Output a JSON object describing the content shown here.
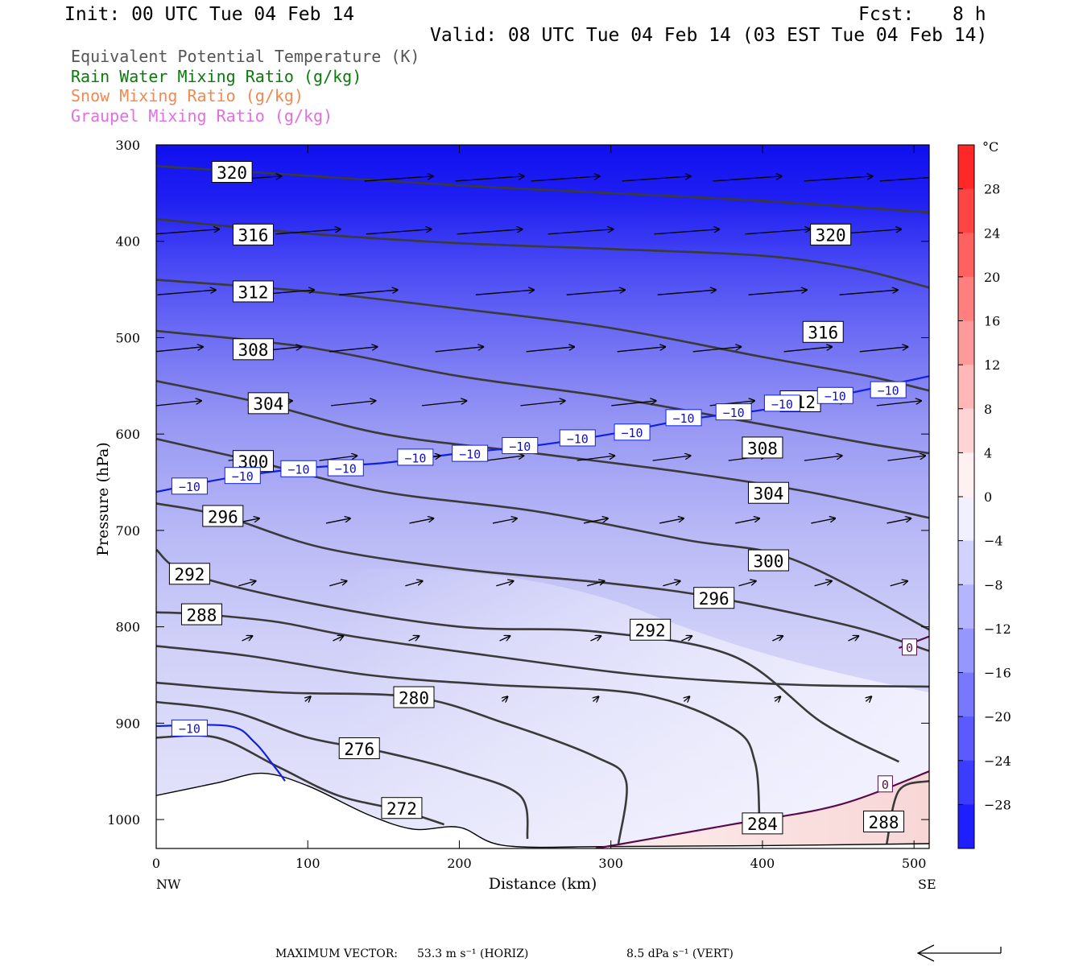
{
  "header": {
    "init": "Init: 00 UTC Tue 04 Feb 14",
    "fcst_label": "Fcst:",
    "fcst_value": "8 h",
    "valid": "Valid: 08 UTC Tue 04 Feb 14 (03 EST Tue 04 Feb 14)"
  },
  "legend": [
    {
      "text": "Equivalent Potential Temperature (K)",
      "color": "#555555"
    },
    {
      "text": "Rain Water Mixing Ratio (g/kg)",
      "color": "#0a7a0a"
    },
    {
      "text": "Snow Mixing Ratio (g/kg)",
      "color": "#f08a50"
    },
    {
      "text": "Graupel Mixing Ratio (g/kg)",
      "color": "#e070e0"
    }
  ],
  "footer": {
    "max_vector_label": "MAXIMUM VECTOR:",
    "horiz": "53.3 m s⁻¹ (HORIZ)",
    "vert": "8.5 dPa s⁻¹ (VERT)"
  },
  "chart_data": {
    "type": "cross-section",
    "xlabel": "Distance (km)",
    "ylabel": "Pressure (hPa)",
    "xlim": [
      0,
      510
    ],
    "ylim": [
      1030,
      300
    ],
    "x_ticks": [
      0,
      100,
      200,
      300,
      400,
      500
    ],
    "y_ticks": [
      300,
      400,
      500,
      600,
      700,
      800,
      900,
      1000
    ],
    "x_end_labels": {
      "left": "NW",
      "right": "SE"
    },
    "colorbar": {
      "unit": "°C",
      "ticks": [
        28,
        24,
        20,
        16,
        12,
        8,
        4,
        0,
        -4,
        -8,
        -12,
        -16,
        -20,
        -24,
        -28
      ],
      "min": -32,
      "max": 32
    },
    "theta_e_contours": [
      {
        "label": "320",
        "pts": [
          [
            0,
            322
          ],
          [
            100,
            332
          ],
          [
            200,
            342
          ],
          [
            300,
            350
          ],
          [
            400,
            358
          ],
          [
            510,
            370
          ]
        ],
        "labels_at": [
          [
            50,
            328
          ],
          [
            445,
            393
          ]
        ]
      },
      {
        "label": "316",
        "pts": [
          [
            0,
            377
          ],
          [
            100,
            392
          ],
          [
            200,
            402
          ],
          [
            300,
            408
          ],
          [
            400,
            415
          ],
          [
            460,
            428
          ],
          [
            510,
            448
          ]
        ],
        "labels_at": [
          [
            64,
            393
          ],
          [
            440,
            494
          ]
        ]
      },
      {
        "label": "312",
        "pts": [
          [
            0,
            440
          ],
          [
            100,
            452
          ],
          [
            200,
            470
          ],
          [
            300,
            490
          ],
          [
            400,
            520
          ],
          [
            470,
            540
          ],
          [
            510,
            555
          ]
        ],
        "labels_at": [
          [
            64,
            452
          ],
          [
            425,
            566
          ]
        ]
      },
      {
        "label": "308",
        "pts": [
          [
            0,
            493
          ],
          [
            100,
            510
          ],
          [
            200,
            540
          ],
          [
            300,
            562
          ],
          [
            400,
            590
          ],
          [
            470,
            610
          ],
          [
            510,
            620
          ]
        ],
        "labels_at": [
          [
            64,
            512
          ],
          [
            400,
            614
          ]
        ]
      },
      {
        "label": "304",
        "pts": [
          [
            0,
            545
          ],
          [
            70,
            568
          ],
          [
            150,
            600
          ],
          [
            250,
            620
          ],
          [
            350,
            640
          ],
          [
            430,
            660
          ],
          [
            510,
            687
          ]
        ],
        "labels_at": [
          [
            74,
            568
          ],
          [
            404,
            661
          ]
        ]
      },
      {
        "label": "300",
        "pts": [
          [
            0,
            605
          ],
          [
            64,
            628
          ],
          [
            150,
            660
          ],
          [
            250,
            680
          ],
          [
            350,
            710
          ],
          [
            420,
            730
          ],
          [
            510,
            803
          ]
        ],
        "labels_at": [
          [
            64,
            628
          ],
          [
            404,
            731
          ]
        ]
      },
      {
        "label": "296",
        "pts": [
          [
            0,
            672
          ],
          [
            44,
            685
          ],
          [
            110,
            718
          ],
          [
            200,
            740
          ],
          [
            300,
            755
          ],
          [
            370,
            770
          ],
          [
            460,
            800
          ],
          [
            510,
            825
          ]
        ],
        "labels_at": [
          [
            44,
            685
          ],
          [
            368,
            770
          ]
        ]
      },
      {
        "label": "292",
        "pts": [
          [
            0,
            720
          ],
          [
            22,
            745
          ],
          [
            100,
            775
          ],
          [
            200,
            800
          ],
          [
            290,
            805
          ],
          [
            380,
            830
          ],
          [
            440,
            900
          ],
          [
            490,
            940
          ]
        ],
        "labels_at": [
          [
            22,
            745
          ],
          [
            326,
            803
          ]
        ]
      },
      {
        "label": "288",
        "pts": [
          [
            0,
            785
          ],
          [
            30,
            787
          ],
          [
            80,
            795
          ],
          [
            130,
            810
          ],
          [
            220,
            830
          ],
          [
            320,
            850
          ],
          [
            420,
            860
          ],
          [
            510,
            862
          ]
        ],
        "labels_at": [
          [
            30,
            787
          ]
        ]
      },
      {
        "label": "284",
        "pts": [
          [
            0,
            820
          ],
          [
            60,
            830
          ],
          [
            140,
            850
          ],
          [
            220,
            860
          ],
          [
            320,
            870
          ],
          [
            380,
            905
          ],
          [
            395,
            940
          ],
          [
            398,
            1000
          ]
        ],
        "labels_at": [
          [
            400,
            1004
          ]
        ]
      },
      {
        "label": "280",
        "pts": [
          [
            0,
            858
          ],
          [
            80,
            868
          ],
          [
            170,
            873
          ],
          [
            230,
            900
          ],
          [
            290,
            935
          ],
          [
            310,
            960
          ],
          [
            305,
            1025
          ]
        ],
        "labels_at": [
          [
            170,
            873
          ]
        ]
      },
      {
        "label": "276",
        "pts": [
          [
            0,
            878
          ],
          [
            50,
            888
          ],
          [
            100,
            915
          ],
          [
            150,
            930
          ],
          [
            200,
            950
          ],
          [
            240,
            975
          ],
          [
            245,
            1020
          ]
        ],
        "labels_at": [
          [
            134,
            926
          ]
        ]
      },
      {
        "label": "288b",
        "pts": [
          [
            510,
            960
          ],
          [
            490,
            970
          ],
          [
            482,
            1025
          ]
        ],
        "labels_at": [
          [
            480,
            1002
          ]
        ]
      },
      {
        "label": "272",
        "pts": [
          [
            0,
            915
          ],
          [
            40,
            915
          ],
          [
            80,
            945
          ],
          [
            120,
            975
          ],
          [
            160,
            990
          ],
          [
            190,
            1005
          ]
        ],
        "labels_at": [
          [
            162,
            988
          ]
        ]
      }
    ],
    "temp_minus10_line": {
      "label": "-10",
      "pts": [
        [
          0,
          660
        ],
        [
          50,
          645
        ],
        [
          100,
          635
        ],
        [
          150,
          630
        ],
        [
          200,
          620
        ],
        [
          250,
          612
        ],
        [
          300,
          600
        ],
        [
          350,
          585
        ],
        [
          400,
          575
        ],
        [
          450,
          560
        ],
        [
          510,
          540
        ]
      ],
      "labels_at": [
        [
          22,
          654
        ],
        [
          57,
          643
        ],
        [
          94,
          636
        ],
        [
          125,
          635
        ],
        [
          171,
          624
        ],
        [
          207,
          620
        ],
        [
          240,
          612
        ],
        [
          278,
          604
        ],
        [
          314,
          598
        ],
        [
          348,
          583
        ],
        [
          381,
          577
        ],
        [
          413,
          568
        ],
        [
          448,
          560
        ],
        [
          483,
          554
        ]
      ]
    },
    "temp_minus10_low": {
      "pts": [
        [
          0,
          903
        ],
        [
          48,
          903
        ],
        [
          65,
          920
        ],
        [
          78,
          945
        ],
        [
          85,
          960
        ]
      ],
      "labels_at": [
        [
          22,
          905
        ]
      ]
    },
    "zero_lines": [
      {
        "label": "0",
        "pts": [
          [
            290,
            1030
          ],
          [
            380,
            1005
          ],
          [
            450,
            985
          ],
          [
            510,
            950
          ]
        ],
        "labels_at": [
          [
            481,
            963
          ]
        ]
      },
      {
        "label": "0",
        "pts": [
          [
            490,
            822
          ],
          [
            510,
            810
          ]
        ],
        "labels_at": [
          [
            497,
            821
          ]
        ]
      }
    ],
    "terrain": [
      [
        0,
        975
      ],
      [
        40,
        962
      ],
      [
        70,
        952
      ],
      [
        100,
        965
      ],
      [
        140,
        995
      ],
      [
        170,
        1010
      ],
      [
        200,
        1008
      ],
      [
        230,
        1027
      ],
      [
        300,
        1028
      ],
      [
        400,
        1027
      ],
      [
        510,
        1025
      ]
    ],
    "wind_rows": [
      {
        "p": 335,
        "xs": [
          60,
          160,
          220,
          270,
          330,
          390,
          450,
          500
        ],
        "u": 1.0
      },
      {
        "p": 390,
        "xs": [
          20,
          100,
          160,
          220,
          280,
          350,
          410,
          470
        ],
        "u": 0.95
      },
      {
        "p": 453,
        "xs": [
          20,
          85,
          140,
          230,
          290,
          350,
          410,
          470
        ],
        "u": 0.85
      },
      {
        "p": 512,
        "xs": [
          15,
          80,
          130,
          200,
          260,
          320,
          370,
          430,
          480
        ],
        "u": 0.7
      },
      {
        "p": 568,
        "xs": [
          15,
          75,
          130,
          190,
          255,
          315,
          380,
          440,
          490
        ],
        "u": 0.65
      },
      {
        "p": 625,
        "xs": [
          60,
          120,
          175,
          230,
          290,
          340,
          390,
          440,
          495
        ],
        "u": 0.55
      },
      {
        "p": 690,
        "xs": [
          60,
          120,
          175,
          230,
          290,
          340,
          390,
          440,
          490
        ],
        "u": 0.35
      },
      {
        "p": 755,
        "xs": [
          60,
          120,
          170,
          230,
          290,
          340,
          390,
          440,
          490
        ],
        "u": 0.25
      },
      {
        "p": 812,
        "xs": [
          60,
          120,
          170,
          230,
          290,
          350,
          410,
          460
        ],
        "u": 0.15
      },
      {
        "p": 875,
        "xs": [
          100,
          160,
          230,
          290,
          350,
          410,
          470
        ],
        "u": 0.08
      }
    ],
    "top_vector_arrow": "long-left"
  }
}
